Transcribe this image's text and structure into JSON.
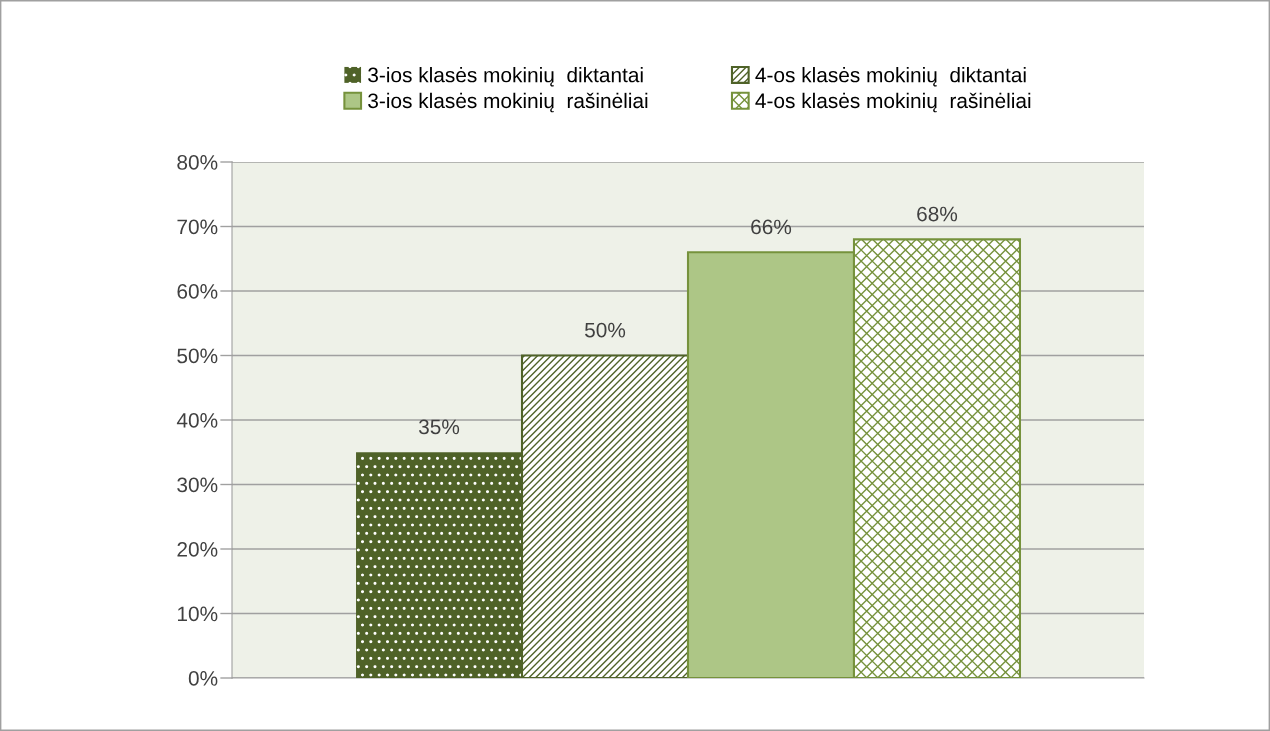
{
  "chart_data": {
    "type": "bar",
    "categories": [
      null
    ],
    "series": [
      {
        "name": "3-ios klasės mokinių  diktantai",
        "color": "#4f6228",
        "values": [
          35
        ],
        "value_labels": [
          "35%"
        ]
      },
      {
        "name": "4-os klasės mokinių  diktantai",
        "color": "#4f6228",
        "values": [
          50
        ],
        "value_labels": [
          "50%"
        ]
      },
      {
        "name": "3-ios klasės mokinių  rašinėliai",
        "color": "#adc686",
        "values": [
          66
        ],
        "value_labels": [
          "66%"
        ]
      },
      {
        "name": "4-os klasės mokinių  rašinėliai",
        "color": "#76923c",
        "values": [
          68
        ],
        "value_labels": [
          "68%"
        ]
      }
    ],
    "ylim": [
      0,
      80
    ],
    "yticks": [
      {
        "value": 0,
        "label": "0%"
      },
      {
        "value": 10,
        "label": "10%"
      },
      {
        "value": 20,
        "label": "20%"
      },
      {
        "value": 30,
        "label": "30%"
      },
      {
        "value": 40,
        "label": "40%"
      },
      {
        "value": 50,
        "label": "50%"
      },
      {
        "value": 60,
        "label": "60%"
      },
      {
        "value": 70,
        "label": "70%"
      },
      {
        "value": 80,
        "label": "80%"
      }
    ],
    "grid": "y",
    "legend": "top"
  }
}
